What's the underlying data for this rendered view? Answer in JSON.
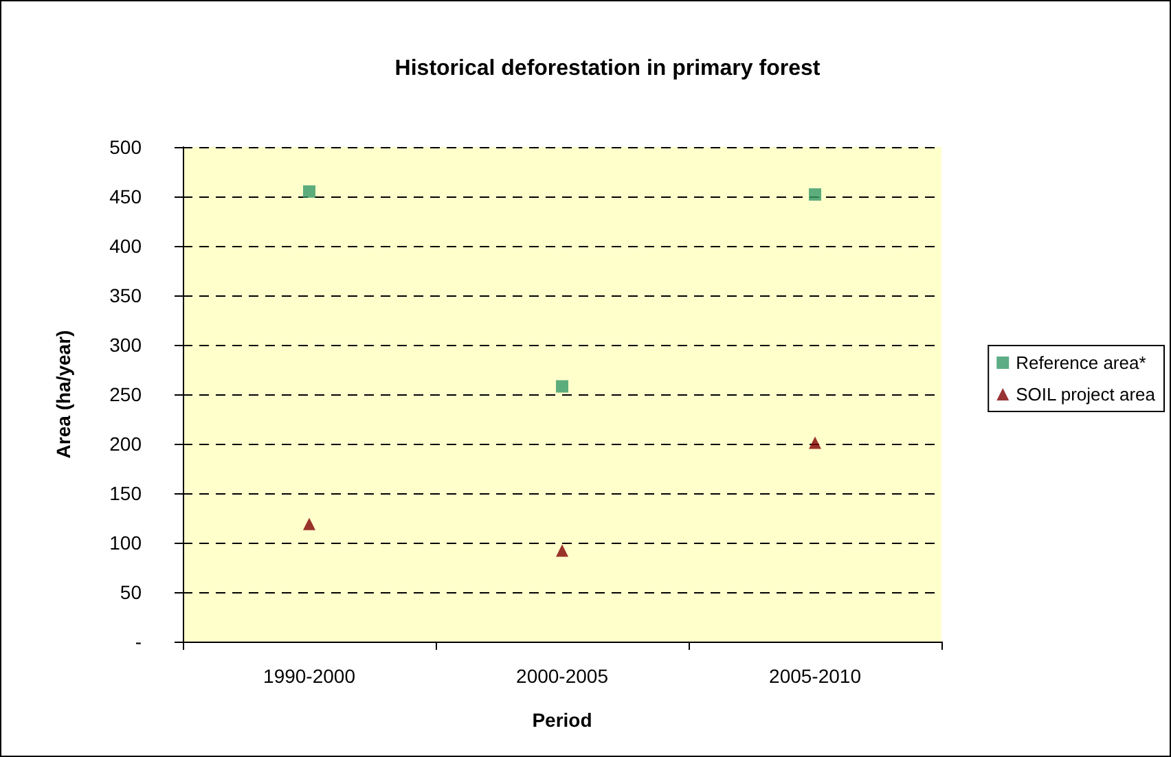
{
  "chart_data": {
    "type": "scatter",
    "title": "Historical deforestation in primary forest",
    "xlabel": "Period",
    "ylabel": "Area (ha/year)",
    "categories": [
      "1990-2000",
      "2000-2005",
      "2005-2010"
    ],
    "series": [
      {
        "name": "Reference area*",
        "color": "#339966",
        "marker": "square",
        "values": [
          455,
          258,
          452
        ]
      },
      {
        "name": "SOIL project area",
        "color": "#800000",
        "marker": "triangle",
        "values": [
          119,
          92,
          201
        ]
      }
    ],
    "ylim": [
      0,
      500
    ],
    "yticks": [
      {
        "value": 0,
        "label": "-"
      },
      50,
      100,
      150,
      200,
      250,
      300,
      350,
      400,
      450,
      500
    ],
    "grid": "y",
    "legend": "right"
  }
}
